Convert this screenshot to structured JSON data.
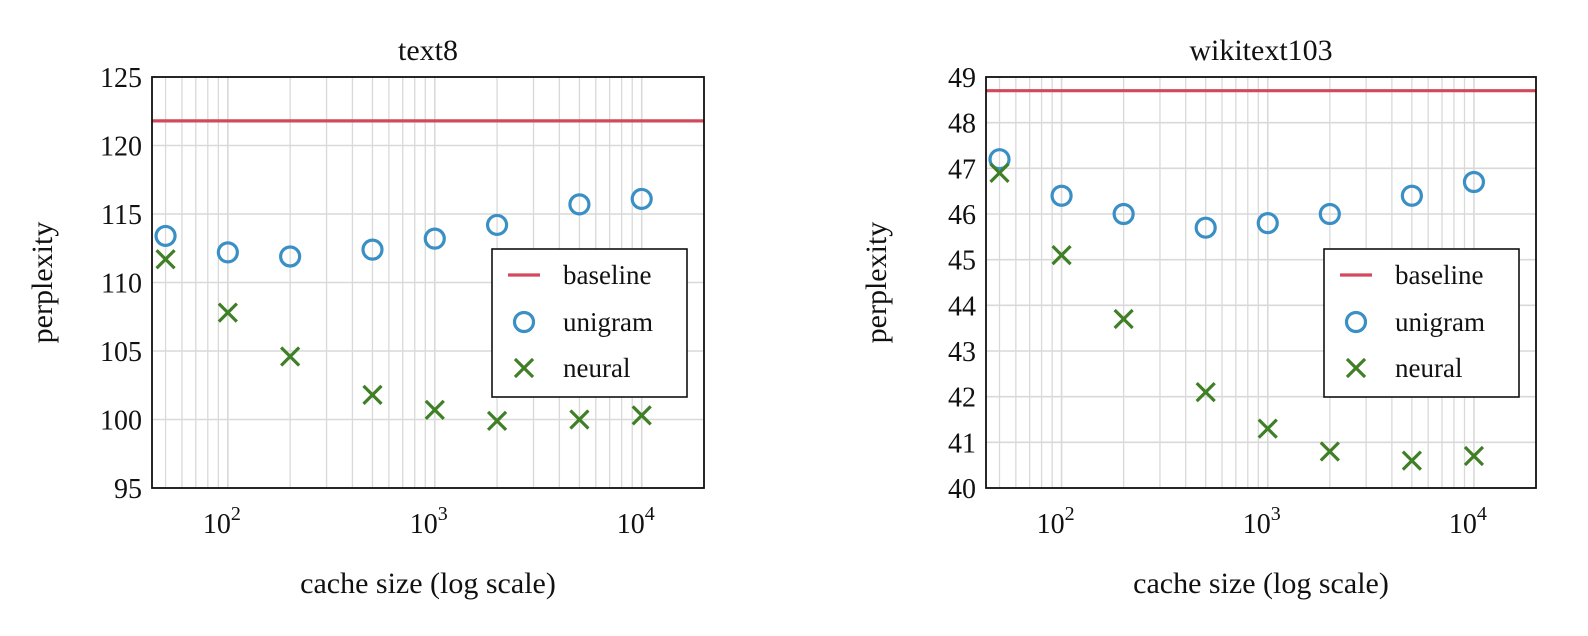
{
  "colors": {
    "baseline": "#d1495b",
    "unigram": "#3a8fc4",
    "neural": "#3f7f25",
    "grid": "#d9d9d9",
    "axis": "#111111"
  },
  "chart_data": [
    {
      "type": "scatter",
      "title": "text8",
      "xlabel": "cache size (log scale)",
      "ylabel": "perplexity",
      "xscale": "log",
      "xlim": [
        43,
        20000
      ],
      "ylim": [
        95,
        125
      ],
      "yticks": [
        "95",
        "100",
        "105",
        "110",
        "115",
        "120",
        "125"
      ],
      "xticks": [
        {
          "base": "10",
          "exp": "2"
        },
        {
          "base": "10",
          "exp": "3"
        },
        {
          "base": "10",
          "exp": "4"
        }
      ],
      "grid": true,
      "legend_position": "right",
      "baseline": 121.8,
      "x": [
        50,
        100,
        200,
        500,
        1000,
        2000,
        5000,
        10000
      ],
      "series": [
        {
          "name": "unigram",
          "marker": "circle",
          "values": [
            113.4,
            112.2,
            111.9,
            112.4,
            113.2,
            114.2,
            115.7,
            116.1
          ]
        },
        {
          "name": "neural",
          "marker": "x",
          "values": [
            111.7,
            107.8,
            104.6,
            101.8,
            100.7,
            99.9,
            100.0,
            100.3
          ]
        }
      ],
      "legend": [
        "baseline",
        "unigram",
        "neural"
      ]
    },
    {
      "type": "scatter",
      "title": "wikitext103",
      "xlabel": "cache size (log scale)",
      "ylabel": "perplexity",
      "xscale": "log",
      "xlim": [
        43,
        20000
      ],
      "ylim": [
        40,
        49
      ],
      "yticks": [
        "40",
        "41",
        "42",
        "43",
        "44",
        "45",
        "46",
        "47",
        "48",
        "49"
      ],
      "xticks": [
        {
          "base": "10",
          "exp": "2"
        },
        {
          "base": "10",
          "exp": "3"
        },
        {
          "base": "10",
          "exp": "4"
        }
      ],
      "grid": true,
      "legend_position": "right",
      "baseline": 48.7,
      "x": [
        50,
        100,
        200,
        500,
        1000,
        2000,
        5000,
        10000
      ],
      "series": [
        {
          "name": "unigram",
          "marker": "circle",
          "values": [
            47.2,
            46.4,
            46.0,
            45.7,
            45.8,
            46.0,
            46.4,
            46.7
          ]
        },
        {
          "name": "neural",
          "marker": "x",
          "values": [
            46.9,
            45.1,
            43.7,
            42.1,
            41.3,
            40.8,
            40.6,
            40.7
          ]
        }
      ],
      "legend": [
        "baseline",
        "unigram",
        "neural"
      ]
    }
  ]
}
